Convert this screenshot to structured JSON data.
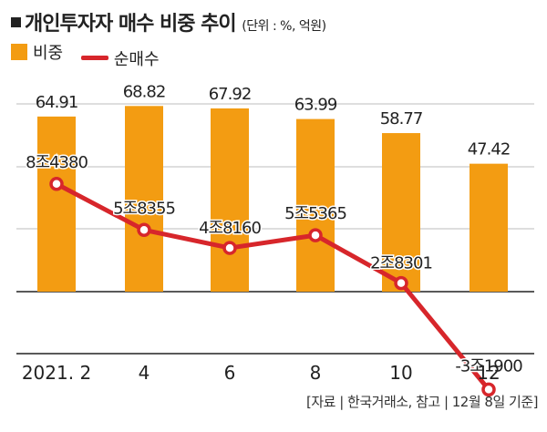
{
  "title": "개인투자자 매수 비중 추이",
  "unit": "(단위 : %, 억원)",
  "source": "[자료 | 한국거래소, 참고 | 12월 8일 기준]",
  "colors": {
    "bar": "#f39c12",
    "line": "#d7262b",
    "grid": "#bcbcbc",
    "axis": "#222222"
  },
  "chart_data": {
    "type": "bar",
    "categories": [
      "2021. 2",
      "4",
      "6",
      "8",
      "10",
      "12"
    ],
    "series": [
      {
        "name": "비중",
        "type": "bar",
        "values": [
          64.91,
          68.82,
          67.92,
          63.99,
          58.77,
          47.42
        ],
        "labels": [
          "64.91",
          "68.82",
          "67.92",
          "63.99",
          "58.77",
          "47.42"
        ]
      },
      {
        "name": "순매수",
        "type": "line",
        "values": [
          84380,
          58355,
          48160,
          55365,
          28301,
          -31900
        ],
        "labels": [
          "8조4380",
          "5조8355",
          "4조8160",
          "5조5365",
          "2조8301",
          "-3조1900"
        ]
      }
    ],
    "legend": "top-left",
    "grid": true
  }
}
